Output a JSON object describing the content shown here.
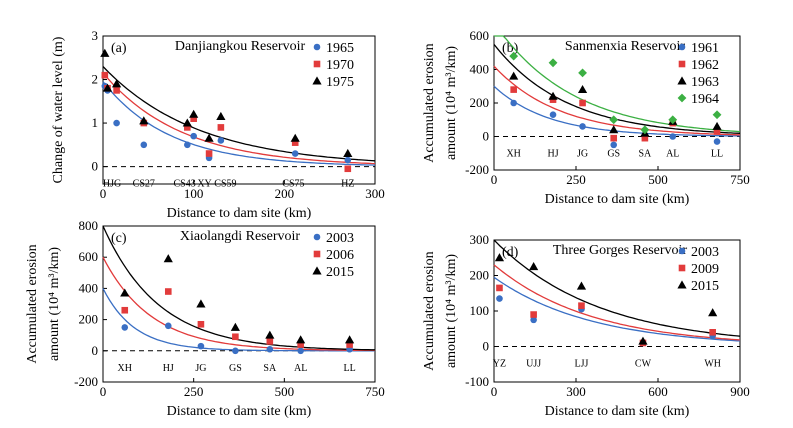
{
  "chart_data": [
    {
      "type": "scatter",
      "panel_label": "(a)",
      "title": "Danjiangkou Reservoir",
      "xlabel": "Distance to dam site (km)",
      "ylabel": [
        "Change of water level (m)"
      ],
      "xlim": [
        0,
        300
      ],
      "ylim": [
        -0.4,
        3
      ],
      "xticks": [
        0,
        100,
        200,
        300
      ],
      "yticks": [
        0,
        1,
        2,
        3
      ],
      "zero_line": "dashed",
      "legend_position": "top-right",
      "stations": [
        {
          "name": "HJG",
          "x": 10
        },
        {
          "name": "CS27",
          "x": 45
        },
        {
          "name": "CS43",
          "x": 90
        },
        {
          "name": "XY",
          "x": 112
        },
        {
          "name": "CS59",
          "x": 135
        },
        {
          "name": "CS75",
          "x": 210
        },
        {
          "name": "HZ",
          "x": 270
        }
      ],
      "series": [
        {
          "name": "1965",
          "marker": "circle",
          "color": "#3a6fc4",
          "x": [
            2,
            5,
            15,
            45,
            93,
            100,
            117,
            130,
            212,
            270
          ],
          "y": [
            1.85,
            1.75,
            1.0,
            0.5,
            0.5,
            0.7,
            0.2,
            0.6,
            0.3,
            0.15
          ],
          "fit": [
            1.95,
            0.0135
          ]
        },
        {
          "name": "1970",
          "marker": "square",
          "color": "#e23b3b",
          "x": [
            2,
            5,
            15,
            45,
            93,
            100,
            117,
            130,
            212,
            270
          ],
          "y": [
            2.1,
            1.8,
            1.75,
            1.0,
            0.9,
            1.1,
            0.3,
            0.9,
            0.55,
            -0.05
          ],
          "fit": [
            2.15,
            0.0115
          ]
        },
        {
          "name": "1975",
          "marker": "triangle",
          "color": "#000000",
          "x": [
            2,
            5,
            15,
            45,
            93,
            100,
            117,
            130,
            212,
            270
          ],
          "y": [
            2.6,
            1.8,
            1.9,
            1.05,
            1.0,
            1.2,
            0.65,
            1.15,
            0.65,
            0.3
          ],
          "fit": [
            2.3,
            0.0095
          ]
        }
      ]
    },
    {
      "type": "scatter",
      "panel_label": "(b)",
      "title": "Sanmenxia Reservoir",
      "xlabel": "Distance to dam site (km)",
      "ylabel": [
        "Accumulated erosion",
        "amount (10⁴ m³/km)"
      ],
      "xlim": [
        0,
        750
      ],
      "ylim": [
        -200,
        600
      ],
      "xticks": [
        0,
        250,
        500,
        750
      ],
      "yticks": [
        -200,
        0,
        200,
        400,
        600
      ],
      "zero_line": "dashed",
      "legend_position": "top-right",
      "stations": [
        {
          "name": "XH",
          "x": 60
        },
        {
          "name": "HJ",
          "x": 180
        },
        {
          "name": "JG",
          "x": 270
        },
        {
          "name": "GS",
          "x": 365
        },
        {
          "name": "SA",
          "x": 460
        },
        {
          "name": "AL",
          "x": 545
        },
        {
          "name": "LL",
          "x": 680
        }
      ],
      "series": [
        {
          "name": "1961",
          "marker": "circle",
          "color": "#3a6fc4",
          "x": [
            60,
            180,
            270,
            365,
            460,
            545,
            680
          ],
          "y": [
            200,
            130,
            60,
            -50,
            0,
            0,
            -30
          ],
          "fit": [
            300,
            0.006
          ]
        },
        {
          "name": "1962",
          "marker": "square",
          "color": "#e23b3b",
          "x": [
            60,
            180,
            270,
            365,
            460,
            545,
            680
          ],
          "y": [
            280,
            220,
            200,
            -10,
            -10,
            80,
            30
          ],
          "fit": [
            420,
            0.005
          ]
        },
        {
          "name": "1963",
          "marker": "triangle",
          "color": "#000000",
          "x": [
            60,
            180,
            270,
            365,
            460,
            545,
            680
          ],
          "y": [
            360,
            240,
            280,
            40,
            20,
            90,
            60
          ],
          "fit": [
            550,
            0.0045
          ]
        },
        {
          "name": "1964",
          "marker": "diamond",
          "color": "#3cb043",
          "x": [
            60,
            180,
            270,
            365,
            460,
            545,
            680
          ],
          "y": [
            480,
            440,
            380,
            100,
            40,
            100,
            130
          ],
          "fit": [
            680,
            0.0042
          ]
        }
      ]
    },
    {
      "type": "scatter",
      "panel_label": "(c)",
      "title": "Xiaolangdi Reservoir",
      "xlabel": "Distance to dam site (km)",
      "ylabel": [
        "Accumulated erosion",
        "amount (10⁴ m³/km)"
      ],
      "xlim": [
        0,
        750
      ],
      "ylim": [
        -200,
        800
      ],
      "xticks": [
        0,
        250,
        500,
        750
      ],
      "yticks": [
        -200,
        0,
        200,
        400,
        600,
        800
      ],
      "zero_line": "dashed",
      "legend_position": "top-right",
      "stations": [
        {
          "name": "XH",
          "x": 60
        },
        {
          "name": "HJ",
          "x": 180
        },
        {
          "name": "JG",
          "x": 270
        },
        {
          "name": "GS",
          "x": 365
        },
        {
          "name": "SA",
          "x": 460
        },
        {
          "name": "AL",
          "x": 545
        },
        {
          "name": "LL",
          "x": 680
        }
      ],
      "series": [
        {
          "name": "2003",
          "marker": "circle",
          "color": "#3a6fc4",
          "x": [
            60,
            180,
            270,
            365,
            460,
            545,
            680
          ],
          "y": [
            150,
            160,
            30,
            0,
            10,
            0,
            10
          ],
          "fit": [
            400,
            0.0115
          ]
        },
        {
          "name": "2006",
          "marker": "square",
          "color": "#e23b3b",
          "x": [
            60,
            180,
            270,
            365,
            460,
            545,
            680
          ],
          "y": [
            260,
            380,
            170,
            90,
            60,
            40,
            40
          ],
          "fit": [
            600,
            0.0075
          ]
        },
        {
          "name": "2015",
          "marker": "triangle",
          "color": "#000000",
          "x": [
            60,
            180,
            270,
            365,
            460,
            545,
            680
          ],
          "y": [
            370,
            590,
            300,
            150,
            100,
            70,
            70
          ],
          "fit": [
            800,
            0.0065
          ]
        }
      ]
    },
    {
      "type": "scatter",
      "panel_label": "(d)",
      "title": "Three Gorges Reservoir",
      "xlabel": "Distance to dam site (km)",
      "ylabel": [
        "Accumulated erosion",
        "amount (10⁴ m³/km)"
      ],
      "xlim": [
        0,
        900
      ],
      "ylim": [
        -100,
        300
      ],
      "xticks": [
        0,
        300,
        600,
        900
      ],
      "yticks": [
        -100,
        0,
        100,
        200,
        300
      ],
      "zero_line": "dashed",
      "legend_position": "top-right",
      "stations": [
        {
          "name": "YZ",
          "x": 20
        },
        {
          "name": "UJJ",
          "x": 145
        },
        {
          "name": "LJJ",
          "x": 320
        },
        {
          "name": "CW",
          "x": 545
        },
        {
          "name": "WH",
          "x": 800
        }
      ],
      "series": [
        {
          "name": "2003",
          "marker": "circle",
          "color": "#3a6fc4",
          "x": [
            20,
            145,
            320,
            545,
            800
          ],
          "y": [
            135,
            75,
            105,
            10,
            30
          ],
          "fit": [
            195,
            0.0028
          ]
        },
        {
          "name": "2009",
          "marker": "square",
          "color": "#e23b3b",
          "x": [
            20,
            145,
            320,
            545,
            800
          ],
          "y": [
            165,
            90,
            115,
            10,
            40
          ],
          "fit": [
            230,
            0.0028
          ]
        },
        {
          "name": "2015",
          "marker": "triangle",
          "color": "#000000",
          "x": [
            20,
            145,
            320,
            545,
            800
          ],
          "y": [
            250,
            225,
            170,
            15,
            95
          ],
          "fit": [
            300,
            0.0026
          ]
        }
      ]
    }
  ]
}
